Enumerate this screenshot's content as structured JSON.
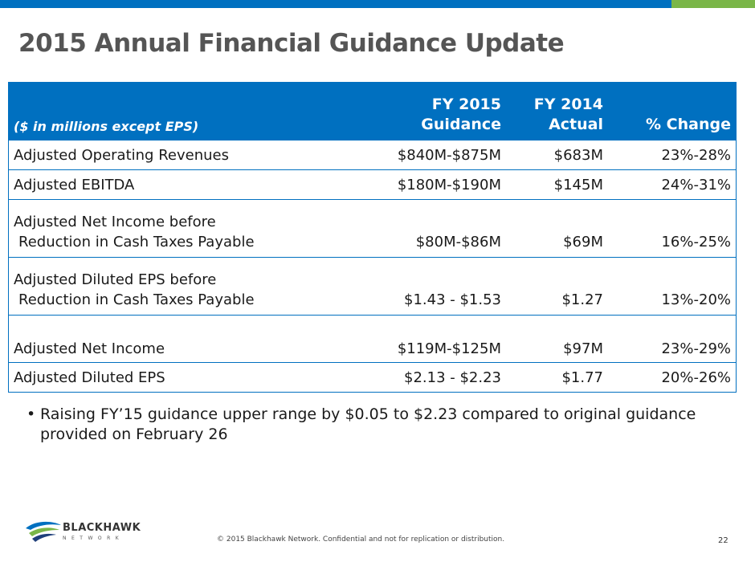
{
  "title": "2015 Annual Financial Guidance Update",
  "colors": {
    "accent_blue": "#0070c0",
    "accent_green": "#7ab648",
    "title_gray": "#555555"
  },
  "table": {
    "units_label": "($ in millions except EPS)",
    "headers": [
      {
        "line1": "FY 2015",
        "line2": "Guidance"
      },
      {
        "line1": "FY 2014",
        "line2": "Actual"
      },
      {
        "line1": "",
        "line2": "% Change"
      }
    ],
    "rows": [
      {
        "line1": "Adjusted Operating Revenues",
        "line2": "",
        "guidance": "$840M-$875M",
        "actual": "$683M",
        "change": "23%-28%"
      },
      {
        "line1": "Adjusted EBITDA",
        "line2": "",
        "guidance": "$180M-$190M",
        "actual": "$145M",
        "change": "24%-31%"
      },
      {
        "line1": "Adjusted Net Income before",
        "line2": "Reduction in Cash Taxes Payable",
        "guidance": "$80M-$86M",
        "actual": "$69M",
        "change": "16%-25%"
      },
      {
        "line1": "Adjusted Diluted EPS before",
        "line2": "Reduction in Cash Taxes Payable",
        "guidance": "$1.43 - $1.53",
        "actual": "$1.27",
        "change": "13%-20%"
      },
      {
        "line1": "Adjusted Net Income",
        "line2": "",
        "guidance": "$119M-$125M",
        "actual": "$97M",
        "change": "23%-29%"
      },
      {
        "line1": "Adjusted Diluted EPS",
        "line2": "",
        "guidance": "$2.13 - $2.23",
        "actual": "$1.77",
        "change": "20%-26%"
      }
    ]
  },
  "bullet": {
    "marker": "•",
    "text": "Raising FY’15 guidance upper range by $0.05 to $2.23 compared to original guidance provided on February 26"
  },
  "logo": {
    "word": "BLACKHAWK",
    "sub": "NETWORK"
  },
  "footer": "© 2015 Blackhawk Network. Confidential and not for replication or distribution.",
  "page_number": "22"
}
